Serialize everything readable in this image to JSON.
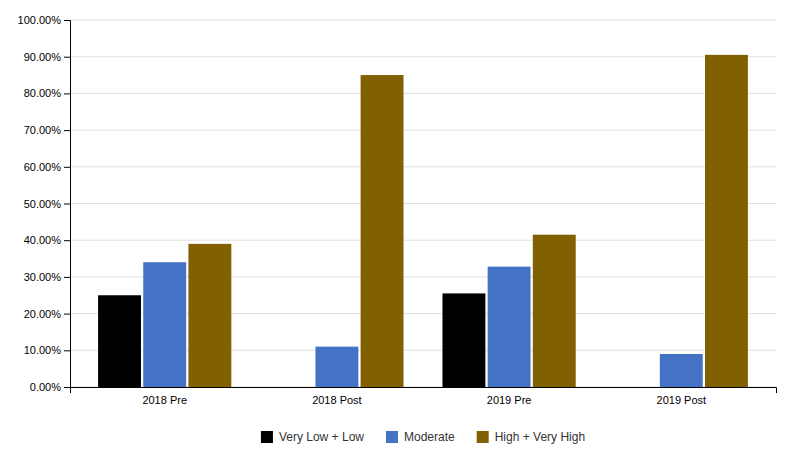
{
  "chart_data": {
    "type": "bar",
    "categories": [
      "2018 Pre",
      "2018 Post",
      "2019 Pre",
      "2019 Post"
    ],
    "series": [
      {
        "name": "Very Low + Low",
        "color": "#000000",
        "values": [
          0.25,
          0.0,
          0.255,
          0.0
        ]
      },
      {
        "name": "Moderate",
        "color": "#4472C4",
        "values": [
          0.34,
          0.11,
          0.328,
          0.09
        ]
      },
      {
        "name": "High + Very High",
        "color": "#806000",
        "values": [
          0.39,
          0.85,
          0.415,
          0.905
        ]
      }
    ],
    "ylim": [
      0.0,
      1.0
    ],
    "yticks": [
      {
        "value": 0.0,
        "label": "0.00%"
      },
      {
        "value": 0.1,
        "label": "10.00%"
      },
      {
        "value": 0.2,
        "label": "20.00%"
      },
      {
        "value": 0.3,
        "label": "30.00%"
      },
      {
        "value": 0.4,
        "label": "40.00%"
      },
      {
        "value": 0.5,
        "label": "50.00%"
      },
      {
        "value": 0.6,
        "label": "60.00%"
      },
      {
        "value": 0.7,
        "label": "70.00%"
      },
      {
        "value": 0.8,
        "label": "80.00%"
      },
      {
        "value": 0.9,
        "label": "90.00%"
      },
      {
        "value": 1.0,
        "label": "100.00%"
      }
    ],
    "grid": true,
    "legend": "bottom"
  }
}
